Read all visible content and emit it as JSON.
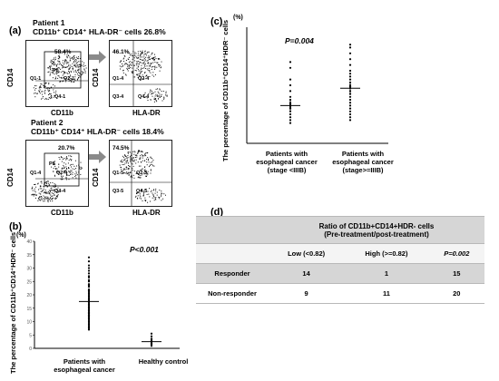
{
  "panel_a": {
    "label": "(a)",
    "patient1": {
      "title": "Patient 1",
      "subtitle": "CD11b⁺ CD14⁺ HLA-DR⁻ cells 26.8%",
      "gate_pct": "58.4%",
      "hla_pct": "46.1%",
      "gate_name": "P8",
      "q1": "Q1-1",
      "q2": "Q2-1",
      "q4": "Q4-1",
      "q3b": "Q3-4",
      "q4b": "Q4-4",
      "q1b": "Q1-4",
      "q2b": "Q2-4"
    },
    "patient2": {
      "title": "Patient 2",
      "subtitle": "CD11b⁺ CD14⁺ HLA-DR⁻ cells 18.4%",
      "gate_pct": "20.7%",
      "hla_pct": "74.5%",
      "gate_name": "P8",
      "q1": "Q1-4",
      "q2": "Q2-4",
      "q4": "Q4-4",
      "q3b": "Q3-5",
      "q4b": "Q4-5",
      "q1b": "Q1-5",
      "q2b": "Q2-5"
    },
    "x_left": "CD11b",
    "x_right": "HLA-DR",
    "y": "CD14"
  },
  "panel_b": {
    "label": "(b)",
    "unit": "(%)",
    "pvalue": "P<0.001",
    "ylabel": "The percentage of CD11b⁺CD14⁺HDR⁻ cells",
    "cat1_line1": "Patients with",
    "cat1_line2": "esophageal cancer",
    "cat2": "Healthy control",
    "ticks": [
      "40",
      "35",
      "30",
      "25",
      "20",
      "15",
      "10",
      "5",
      "0"
    ]
  },
  "panel_c": {
    "label": "(c)",
    "unit": "(%)",
    "pvalue": "P=0.004",
    "ylabel": "The percentage of CD11b⁺CD14⁺HDR⁻ cells",
    "cat1_line1": "Patients with",
    "cat1_line2": "esophageal cancer",
    "cat1_line3": "(stage <IIIB)",
    "cat2_line1": "Patients with",
    "cat2_line2": "esophageal cancer",
    "cat2_line3": "(stage>=IIIB)"
  },
  "panel_d": {
    "label": "(d)",
    "header_line1": "Ratio of CD11b+CD14+HDR- cells",
    "header_line2": "(Pre-treatment/post-treatment)",
    "col_low": "Low (<0.82)",
    "col_high": "High (>=0.82)",
    "col_p": "P=0.002",
    "rows": [
      {
        "label": "Responder",
        "low": "14",
        "high": "1",
        "total": "15"
      },
      {
        "label": "Non-responder",
        "low": "9",
        "high": "11",
        "total": "20"
      }
    ]
  },
  "chart_data": [
    {
      "type": "scatter",
      "title": "",
      "pvalue": "P<0.001",
      "ylabel": "The percentage of CD11b⁺CD14⁺HDR⁻ cells",
      "ylim": [
        0,
        40
      ],
      "categories": [
        "Patients with esophageal cancer",
        "Healthy control"
      ],
      "series": [
        {
          "values": [
            34,
            32.5,
            31,
            30,
            29,
            28,
            27,
            26.5,
            25.5,
            25,
            24,
            23.5,
            23,
            22,
            21.5,
            21,
            20.5,
            20,
            19.5,
            19,
            18.5,
            18,
            17.5,
            17,
            16.5,
            16,
            15.5,
            15,
            14.5,
            14,
            13.5,
            13,
            12.5,
            12,
            11.5,
            11,
            10.5,
            10,
            9.5,
            9,
            8.5,
            8,
            7.5,
            7
          ],
          "median": 17.5
        },
        {
          "values": [
            5.5,
            4.5,
            3.5,
            3,
            2.5,
            2,
            1.5,
            1
          ],
          "median": 2.5
        }
      ]
    },
    {
      "type": "scatter",
      "title": "",
      "pvalue": "P=0.004",
      "ylabel": "The percentage of CD11b⁺CD14⁺HDR⁻ cells",
      "ylim": [
        0,
        40
      ],
      "categories": [
        "Patients with esophageal cancer (stage <IIIB)",
        "Patients with esophageal cancer (stage>=IIIB)"
      ],
      "series": [
        {
          "values": [
            28,
            26,
            22,
            20,
            18,
            16,
            15,
            14,
            13.5,
            13,
            12.5,
            12,
            11,
            10,
            9,
            8,
            7
          ],
          "median": 13
        },
        {
          "values": [
            34,
            33,
            31,
            29,
            27,
            25,
            24,
            23,
            22,
            21,
            20,
            19.5,
            19,
            18,
            17,
            16,
            15,
            14,
            13,
            12,
            11,
            10,
            9,
            8
          ],
          "median": 19
        }
      ]
    }
  ]
}
